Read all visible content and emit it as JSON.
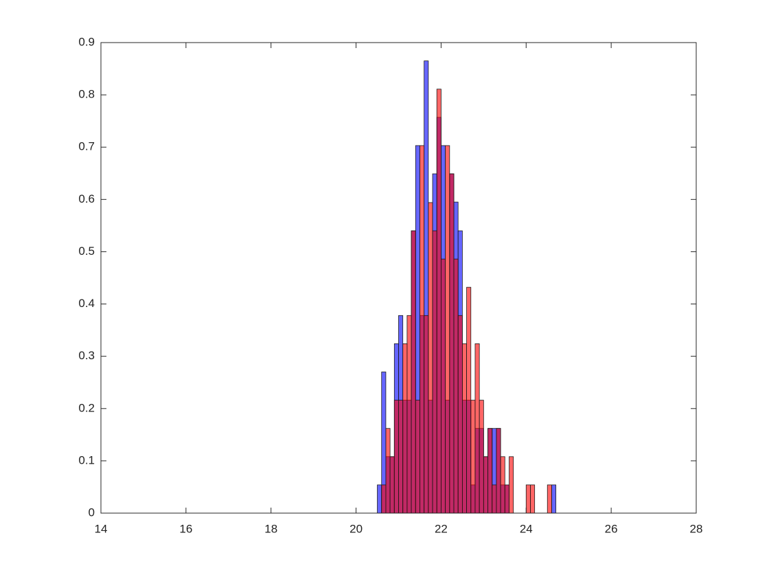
{
  "chart_data": {
    "type": "histogram",
    "bins": [
      20.5,
      20.6,
      20.7,
      20.8,
      20.9,
      21.0,
      21.1,
      21.2,
      21.3,
      21.4,
      21.5,
      21.6,
      21.7,
      21.8,
      21.9,
      22.0,
      22.1,
      22.2,
      22.3,
      22.4,
      22.5,
      22.6,
      22.7,
      22.8,
      22.9,
      23.0,
      23.1,
      23.2,
      23.3,
      23.4,
      23.5,
      23.6,
      23.7,
      23.8,
      23.9,
      24.0,
      24.1,
      24.2,
      24.3,
      24.4,
      24.5,
      24.6,
      24.7
    ],
    "series": [
      {
        "color": "#0000ff",
        "values": [
          0.054,
          0.27,
          0.108,
          0.108,
          0.324,
          0.378,
          0.216,
          0.216,
          0.54,
          0.703,
          0.378,
          0.865,
          0.216,
          0.649,
          0.757,
          0.703,
          0.216,
          0.649,
          0.595,
          0.54,
          0.216,
          0.216,
          0.054,
          0.162,
          0.162,
          0.108,
          0.162,
          0.162,
          0.162,
          0.054,
          0.054,
          0,
          0,
          0,
          0,
          0,
          0,
          0,
          0,
          0,
          0,
          0.054
        ]
      },
      {
        "color": "#ff0000",
        "values": [
          0,
          0.054,
          0.162,
          0.108,
          0.216,
          0.216,
          0.324,
          0.378,
          0.54,
          0.216,
          0.703,
          0.378,
          0.594,
          0.54,
          0.811,
          0.486,
          0.703,
          0.649,
          0.486,
          0.378,
          0.324,
          0.432,
          0.216,
          0.324,
          0.216,
          0.108,
          0.162,
          0.054,
          0.162,
          0.108,
          0.054,
          0.108,
          0,
          0,
          0,
          0.054,
          0.054,
          0,
          0,
          0,
          0.054,
          0
        ]
      }
    ],
    "xlim": [
      14,
      28
    ],
    "xticks": [
      14,
      16,
      18,
      20,
      22,
      24,
      26,
      28
    ],
    "ylim": [
      0,
      0.9
    ],
    "yticks": [
      0,
      0.1,
      0.2,
      0.3,
      0.4,
      0.5,
      0.6,
      0.7,
      0.8,
      0.9
    ]
  }
}
